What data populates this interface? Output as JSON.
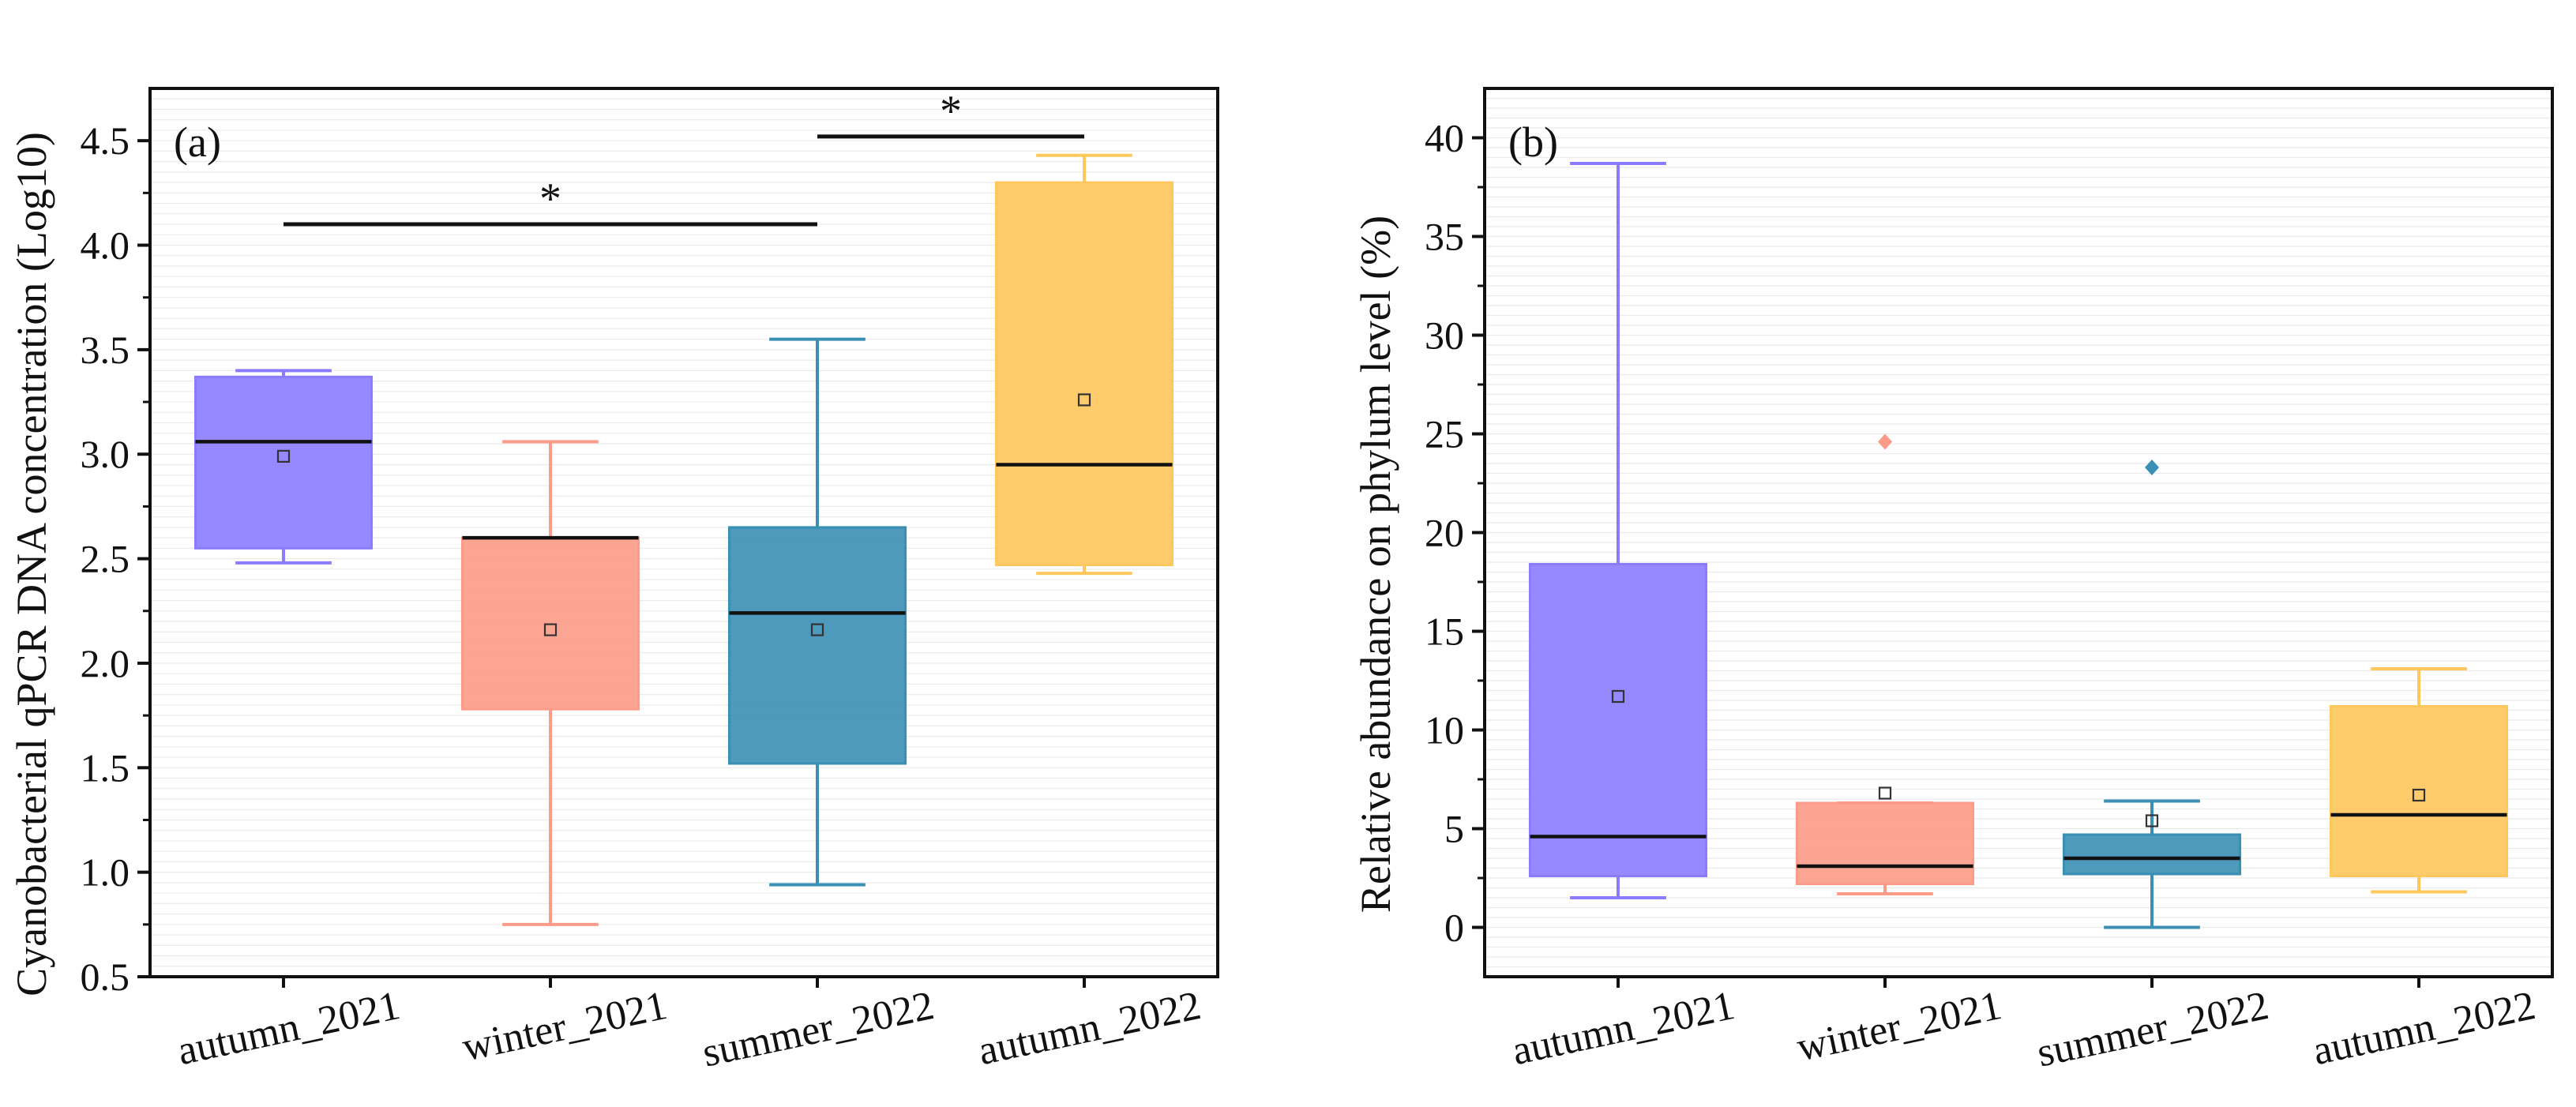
{
  "chart_data": [
    {
      "type": "box",
      "panel_label": "(a)",
      "ylabel": "Cyanobacterial qPCR DNA concentration (Log10)",
      "xlabel": "",
      "ylim": [
        0.5,
        4.75
      ],
      "yticks": [
        "0.5",
        "1.0",
        "1.5",
        "2.0",
        "2.5",
        "3.0",
        "3.5",
        "4.0",
        "4.5"
      ],
      "ytick_values": [
        0.5,
        1.0,
        1.5,
        2.0,
        2.5,
        3.0,
        3.5,
        4.0,
        4.5
      ],
      "grid": true,
      "categories": [
        "autumn_2021",
        "winter_2021",
        "summer_2022",
        "autumn_2022"
      ],
      "boxes": [
        {
          "category": "autumn_2021",
          "whisker_low": 2.48,
          "q1": 2.55,
          "median": 3.06,
          "mean": 2.99,
          "q3": 3.37,
          "whisker_high": 3.4,
          "outliers": [],
          "color": "#8b7cff"
        },
        {
          "category": "winter_2021",
          "whisker_low": 0.75,
          "q1": 1.78,
          "median": 2.6,
          "mean": 2.16,
          "q3": 2.6,
          "whisker_high": 3.06,
          "outliers": [],
          "color": "#fc9b87"
        },
        {
          "category": "summer_2022",
          "whisker_low": 0.94,
          "q1": 1.52,
          "median": 2.24,
          "mean": 2.16,
          "q3": 2.65,
          "whisker_high": 3.55,
          "outliers": [],
          "color": "#3a8fb5"
        },
        {
          "category": "autumn_2022",
          "whisker_low": 2.43,
          "q1": 2.47,
          "median": 2.95,
          "mean": 3.26,
          "q3": 4.3,
          "whisker_high": 4.43,
          "outliers": [],
          "color": "#ffc75c"
        }
      ],
      "significance": [
        {
          "from": "autumn_2021",
          "to": "summer_2022",
          "y": 4.1,
          "label": "*"
        },
        {
          "from": "summer_2022",
          "to": "autumn_2022",
          "y": 4.52,
          "label": "*"
        }
      ]
    },
    {
      "type": "box",
      "panel_label": "(b)",
      "ylabel": "Relative abundance on phylum level (%)",
      "xlabel": "",
      "ylim": [
        -2.5,
        42.5
      ],
      "yticks": [
        "0",
        "5",
        "10",
        "15",
        "20",
        "25",
        "30",
        "35",
        "40"
      ],
      "ytick_values": [
        0,
        5,
        10,
        15,
        20,
        25,
        30,
        35,
        40
      ],
      "grid": true,
      "categories": [
        "autumn_2021",
        "winter_2021",
        "summer_2022",
        "autumn_2022"
      ],
      "boxes": [
        {
          "category": "autumn_2021",
          "whisker_low": 1.5,
          "q1": 2.6,
          "median": 4.6,
          "mean": 11.7,
          "q3": 18.4,
          "whisker_high": 38.7,
          "outliers": [],
          "color": "#8b7cff"
        },
        {
          "category": "winter_2021",
          "whisker_low": 1.7,
          "q1": 2.2,
          "median": 3.1,
          "mean": 6.8,
          "q3": 6.3,
          "whisker_high": 6.3,
          "outliers": [
            24.6
          ],
          "color": "#fc9b87"
        },
        {
          "category": "summer_2022",
          "whisker_low": 0.0,
          "q1": 2.7,
          "median": 3.5,
          "mean": 5.4,
          "q3": 4.7,
          "whisker_high": 6.4,
          "outliers": [
            23.3
          ],
          "color": "#3a8fb5"
        },
        {
          "category": "autumn_2022",
          "whisker_low": 1.8,
          "q1": 2.6,
          "median": 5.7,
          "mean": 6.7,
          "q3": 11.2,
          "whisker_high": 13.1,
          "outliers": [],
          "color": "#ffc75c"
        }
      ],
      "significance": []
    }
  ]
}
